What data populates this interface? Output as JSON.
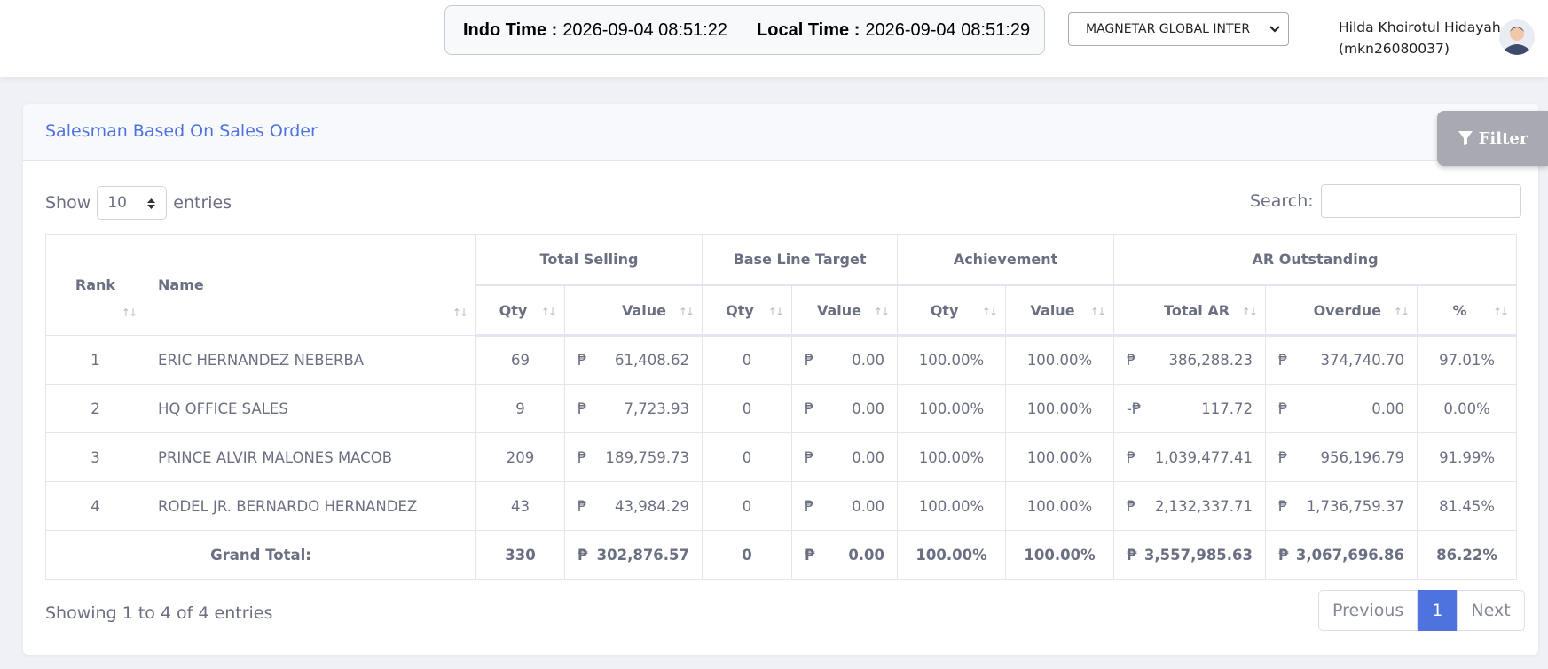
{
  "header": {
    "indo_time_label": "Indo Time :",
    "indo_time": "2026-09-04 08:51:22",
    "local_time_label": "Local Time :",
    "local_time": "2026-09-04 08:51:29",
    "company": "MAGNETAR GLOBAL INTER",
    "user_name": "Hilda Khoirotul Hidayah",
    "user_id": "(mkn26080037)"
  },
  "card": {
    "title": "Salesman Based On Sales Order",
    "filter": "Filter",
    "show": "Show",
    "entries_value": "10",
    "entries": "entries",
    "search": "Search:"
  },
  "table": {
    "rank": "Rank",
    "name": "Name",
    "groups": [
      "Total Selling",
      "Base Line Target",
      "Achievement",
      "AR Outstanding"
    ],
    "subheaders": [
      "Qty",
      "Value",
      "Qty",
      "Value",
      "Qty",
      "Value",
      "Total AR",
      "Overdue",
      "%"
    ],
    "rows": [
      [
        "1",
        "ERIC HERNANDEZ NEBERBA",
        "69",
        {
          "currency": "₱",
          "amount": "61,408.62"
        },
        "0",
        {
          "currency": "₱",
          "amount": "0.00"
        },
        "100.00%",
        "100.00%",
        {
          "currency": "₱",
          "amount": "386,288.23"
        },
        {
          "currency": "₱",
          "amount": "374,740.70"
        },
        "97.01%"
      ],
      [
        "2",
        "HQ OFFICE SALES",
        "9",
        {
          "currency": "₱",
          "amount": "7,723.93"
        },
        "0",
        {
          "currency": "₱",
          "amount": "0.00"
        },
        "100.00%",
        "100.00%",
        {
          "currency": "-₱",
          "amount": "117.72"
        },
        {
          "currency": "₱",
          "amount": "0.00"
        },
        "0.00%"
      ],
      [
        "3",
        "PRINCE ALVIR MALONES MACOB",
        "209",
        {
          "currency": "₱",
          "amount": "189,759.73"
        },
        "0",
        {
          "currency": "₱",
          "amount": "0.00"
        },
        "100.00%",
        "100.00%",
        {
          "currency": "₱",
          "amount": "1,039,477.41"
        },
        {
          "currency": "₱",
          "amount": "956,196.79"
        },
        "91.99%"
      ],
      [
        "4",
        "RODEL JR. BERNARDO HERNANDEZ",
        "43",
        {
          "currency": "₱",
          "amount": "43,984.29"
        },
        "0",
        {
          "currency": "₱",
          "amount": "0.00"
        },
        "100.00%",
        "100.00%",
        {
          "currency": "₱",
          "amount": "2,132,337.71"
        },
        {
          "currency": "₱",
          "amount": "1,736,759.37"
        },
        "81.45%"
      ]
    ],
    "total": [
      "Grand Total:",
      "330",
      {
        "currency": "₱",
        "amount": "302,876.57"
      },
      "0",
      {
        "currency": "₱",
        "amount": "0.00"
      },
      "100.00%",
      "100.00%",
      {
        "currency": "₱",
        "amount": "3,557,985.63"
      },
      {
        "currency": "₱",
        "amount": "3,067,696.86"
      },
      "86.22%"
    ]
  },
  "footer": {
    "info": "Showing 1 to 4 of 4 entries",
    "previous": "Previous",
    "page": "1",
    "next": "Next"
  }
}
